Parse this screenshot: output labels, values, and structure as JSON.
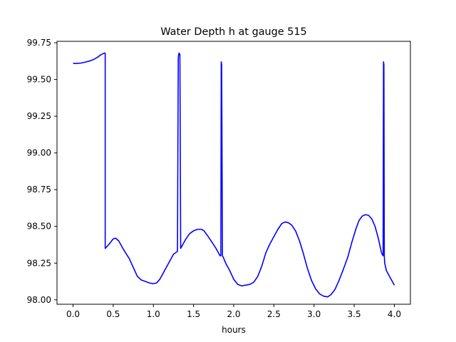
{
  "chart_data": {
    "type": "line",
    "title": "Water Depth h at gauge 515",
    "xlabel": "hours",
    "ylabel": "",
    "xlim": [
      -0.2,
      4.2
    ],
    "ylim": [
      97.97,
      99.76
    ],
    "xticks": [
      0.0,
      0.5,
      1.0,
      1.5,
      2.0,
      2.5,
      3.0,
      3.5,
      4.0
    ],
    "xtick_labels": [
      "0.0",
      "0.5",
      "1.0",
      "1.5",
      "2.0",
      "2.5",
      "3.0",
      "3.5",
      "4.0"
    ],
    "yticks": [
      98.0,
      98.25,
      98.5,
      98.75,
      99.0,
      99.25,
      99.5,
      99.75
    ],
    "ytick_labels": [
      "98.00",
      "98.25",
      "98.50",
      "98.75",
      "99.00",
      "99.25",
      "99.50",
      "99.75"
    ],
    "grid": false,
    "legend": "none",
    "series": [
      {
        "color": "#0000ff",
        "x": [
          0.0,
          0.05,
          0.1,
          0.15,
          0.2,
          0.25,
          0.3,
          0.35,
          0.39,
          0.4,
          0.4,
          0.45,
          0.5,
          0.53,
          0.57,
          0.62,
          0.7,
          0.75,
          0.8,
          0.85,
          0.9,
          0.95,
          1.0,
          1.04,
          1.08,
          1.12,
          1.16,
          1.2,
          1.25,
          1.3,
          1.31,
          1.315,
          1.32,
          1.33,
          1.34,
          1.34,
          1.37,
          1.4,
          1.45,
          1.5,
          1.55,
          1.6,
          1.63,
          1.67,
          1.72,
          1.78,
          1.83,
          1.84,
          1.845,
          1.85,
          1.86,
          1.87,
          1.87,
          1.9,
          1.95,
          2.0,
          2.05,
          2.1,
          2.15,
          2.2,
          2.25,
          2.3,
          2.35,
          2.4,
          2.45,
          2.5,
          2.55,
          2.6,
          2.64,
          2.68,
          2.72,
          2.77,
          2.82,
          2.87,
          2.92,
          2.97,
          3.02,
          3.07,
          3.12,
          3.17,
          3.21,
          3.26,
          3.31,
          3.36,
          3.42,
          3.47,
          3.52,
          3.56,
          3.6,
          3.64,
          3.68,
          3.72,
          3.76,
          3.8,
          3.84,
          3.86,
          3.865,
          3.87,
          3.875,
          3.88,
          3.88,
          3.9,
          3.95,
          4.0
        ],
        "y": [
          99.61,
          99.61,
          99.612,
          99.618,
          99.625,
          99.635,
          99.65,
          99.67,
          99.68,
          99.68,
          98.35,
          98.38,
          98.415,
          98.42,
          98.4,
          98.35,
          98.28,
          98.22,
          98.16,
          98.135,
          98.125,
          98.115,
          98.11,
          98.115,
          98.14,
          98.18,
          98.22,
          98.26,
          98.31,
          98.33,
          99.65,
          99.67,
          99.68,
          99.67,
          98.35,
          98.35,
          98.38,
          98.41,
          98.45,
          98.47,
          98.48,
          98.48,
          98.47,
          98.44,
          98.4,
          98.35,
          98.3,
          98.3,
          99.62,
          99.6,
          98.3,
          98.29,
          98.29,
          98.25,
          98.2,
          98.14,
          98.105,
          98.095,
          98.1,
          98.105,
          98.12,
          98.16,
          98.23,
          98.32,
          98.38,
          98.43,
          98.48,
          98.52,
          98.53,
          98.525,
          98.51,
          98.47,
          98.4,
          98.31,
          98.21,
          98.13,
          98.075,
          98.04,
          98.025,
          98.02,
          98.035,
          98.07,
          98.13,
          98.2,
          98.29,
          98.39,
          98.48,
          98.54,
          98.57,
          98.58,
          98.575,
          98.55,
          98.5,
          98.42,
          98.32,
          98.3,
          99.62,
          99.6,
          98.3,
          98.25,
          98.25,
          98.2,
          98.15,
          98.1
        ]
      }
    ]
  }
}
